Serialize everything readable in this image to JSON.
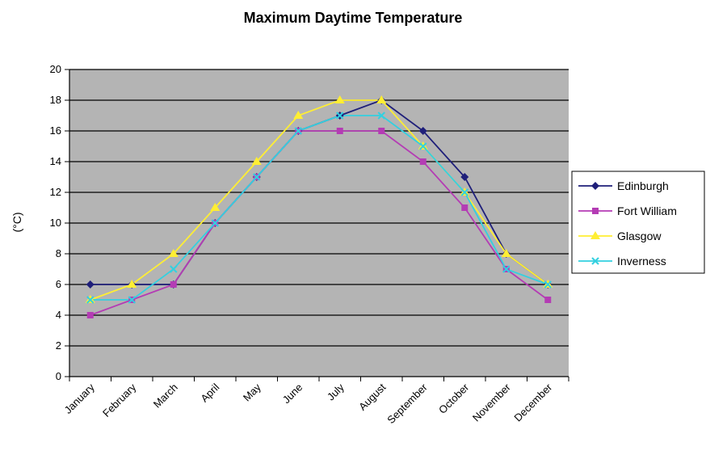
{
  "chart_data": {
    "type": "line",
    "title": "Maximum Daytime Temperature",
    "xlabel": "",
    "ylabel": "(°C)",
    "ylim": [
      0,
      20
    ],
    "yticks": [
      0,
      2,
      4,
      6,
      8,
      10,
      12,
      14,
      16,
      18,
      20
    ],
    "grid": true,
    "legend_position": "right",
    "plot_background": "#b4b4b4",
    "categories": [
      "January",
      "February",
      "March",
      "April",
      "May",
      "June",
      "July",
      "August",
      "September",
      "October",
      "November",
      "December"
    ],
    "series": [
      {
        "name": "Edinburgh",
        "color": "#1f1f7a",
        "marker": "diamond",
        "values": [
          6,
          6,
          6,
          10,
          13,
          16,
          17,
          18,
          16,
          13,
          8,
          6
        ]
      },
      {
        "name": "Fort William",
        "color": "#b43cb4",
        "marker": "square",
        "values": [
          4,
          5,
          6,
          10,
          13,
          16,
          16,
          16,
          14,
          11,
          7,
          5
        ]
      },
      {
        "name": "Glasgow",
        "color": "#ffee33",
        "marker": "triangle",
        "values": [
          5,
          6,
          8,
          11,
          14,
          17,
          18,
          18,
          15,
          12,
          8,
          6
        ]
      },
      {
        "name": "Inverness",
        "color": "#33d0e0",
        "marker": "x",
        "values": [
          5,
          5,
          7,
          10,
          13,
          16,
          17,
          17,
          15,
          12,
          7,
          6
        ]
      }
    ]
  }
}
